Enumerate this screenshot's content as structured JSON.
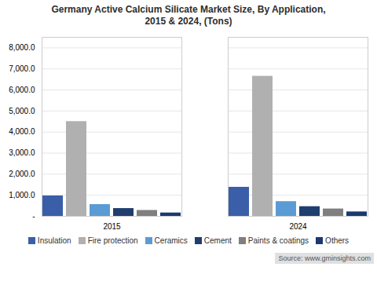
{
  "chart_data": {
    "type": "bar",
    "title": "Germany Active Calcium Silicate Market Size, By Application,\n2015 & 2024, (Tons)",
    "categories": [
      "2015",
      "2024"
    ],
    "series": [
      {
        "name": "Insulation",
        "color": "#3a5ea8",
        "values": [
          970,
          1380
        ]
      },
      {
        "name": "Fire protection",
        "color": "#b0b0b0",
        "values": [
          4500,
          6650
        ]
      },
      {
        "name": "Ceramics",
        "color": "#5b9bd5",
        "values": [
          560,
          700
        ]
      },
      {
        "name": "Cement",
        "color": "#1f3d6e",
        "values": [
          370,
          460
        ]
      },
      {
        "name": "Paints & coatings",
        "color": "#7f7f7f",
        "values": [
          280,
          350
        ]
      },
      {
        "name": "Others",
        "color": "#1a3a6e",
        "values": [
          160,
          210
        ]
      }
    ],
    "ylim": [
      0,
      8500
    ],
    "yticks": [
      {
        "value": 0,
        "label": "-"
      },
      {
        "value": 1000,
        "label": "1,000.0"
      },
      {
        "value": 2000,
        "label": "2,000.0"
      },
      {
        "value": 3000,
        "label": "3,000.0"
      },
      {
        "value": 4000,
        "label": "4,000.0"
      },
      {
        "value": 5000,
        "label": "5,000.0"
      },
      {
        "value": 6000,
        "label": "6,000.0"
      },
      {
        "value": 7000,
        "label": "7,000.0"
      },
      {
        "value": 8000,
        "label": "8,000.0"
      }
    ],
    "grid": true,
    "legend": "bottom",
    "annotations": [
      "Source: www.gminsights.com"
    ]
  }
}
